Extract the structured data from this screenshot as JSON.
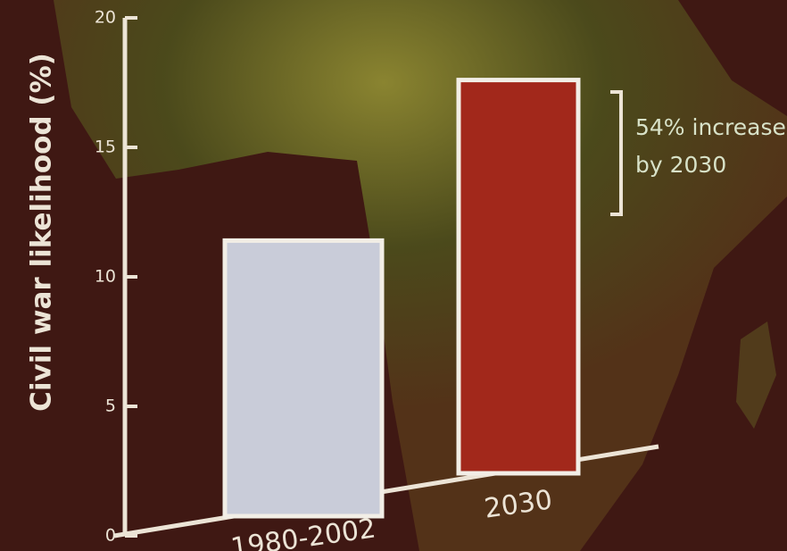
{
  "chart_data": {
    "type": "bar",
    "y_label": "Civil war likelihood (%)",
    "categories": [
      "1980-2002",
      "2030"
    ],
    "values": [
      11.4,
      17.6
    ],
    "colors": [
      "#c9ccd9",
      "#a2281b"
    ],
    "ylim": [
      0,
      20
    ],
    "yticks": [
      0,
      5,
      10,
      15,
      20
    ],
    "annotation": [
      "54% increase",
      "by 2030"
    ]
  }
}
